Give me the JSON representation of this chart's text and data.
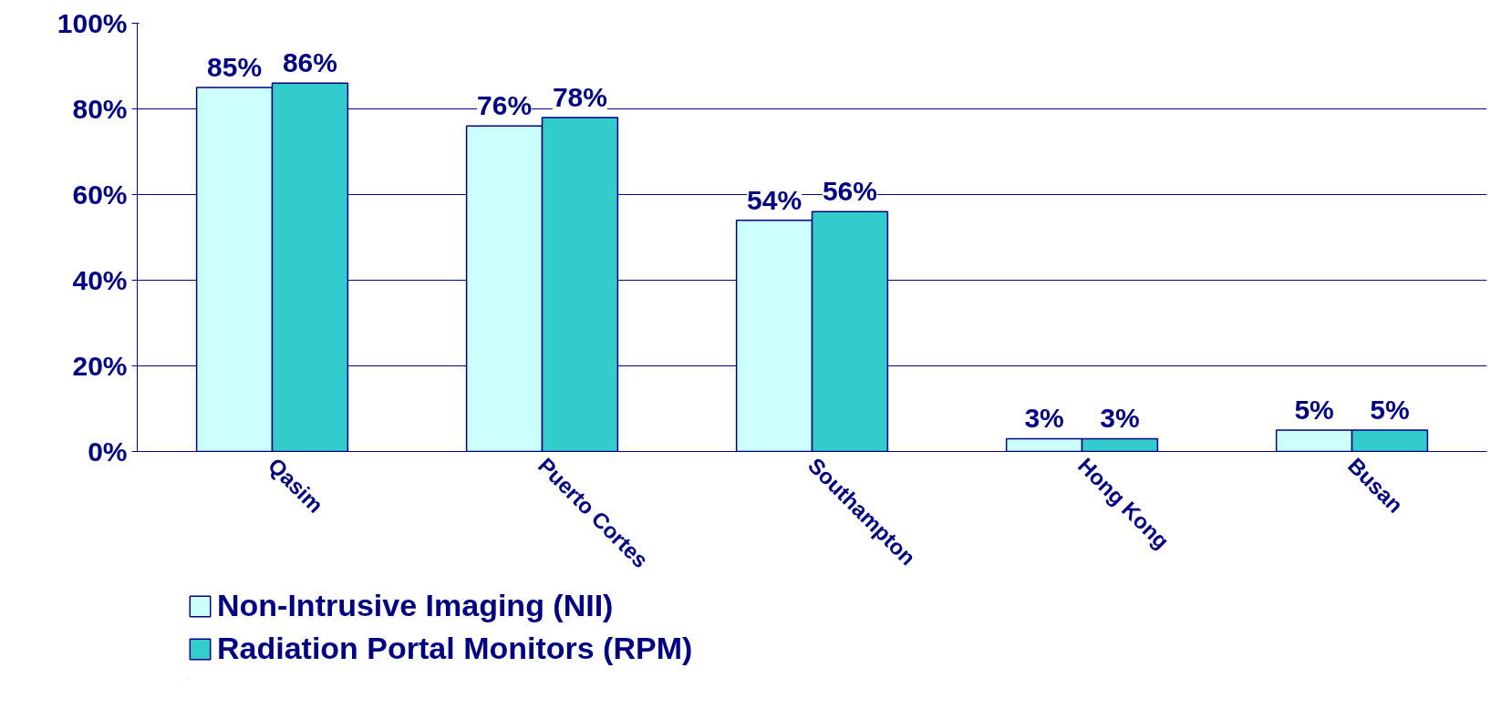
{
  "chart_data": {
    "type": "bar",
    "categories": [
      "Qasim",
      "Puerto Cortes",
      "Southampton",
      "Hong Kong",
      "Busan"
    ],
    "series": [
      {
        "name": "Non-Intrusive Imaging (NII)",
        "color": "#ccffff",
        "values": [
          85,
          76,
          54,
          3,
          5
        ]
      },
      {
        "name": "Radiation Portal Monitors (RPM)",
        "color": "#33cccc",
        "values": [
          86,
          78,
          56,
          3,
          5
        ]
      }
    ],
    "ylim": [
      0,
      100
    ],
    "yticks": [
      {
        "value": 0,
        "label": "0%"
      },
      {
        "value": 20,
        "label": "20%"
      },
      {
        "value": 40,
        "label": "40%"
      },
      {
        "value": 60,
        "label": "60%"
      },
      {
        "value": 80,
        "label": "80%"
      },
      {
        "value": 100,
        "label": "100%"
      }
    ],
    "value_labels": [
      [
        "85%",
        "76%",
        "54%",
        "3%",
        "5%"
      ],
      [
        "86%",
        "78%",
        "56%",
        "3%",
        "5%"
      ]
    ],
    "grid": "y",
    "legend": "bottom left"
  }
}
